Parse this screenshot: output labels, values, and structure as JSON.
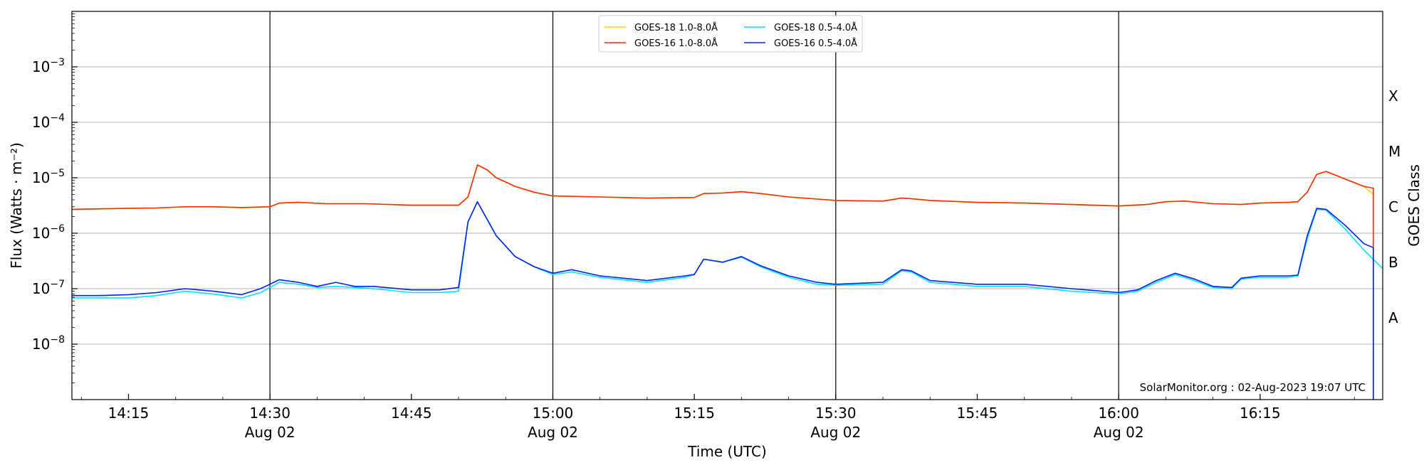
{
  "chart_data": {
    "type": "line",
    "ylabel": "Flux (Watts · m⁻²)",
    "xlabel": "Time (UTC)",
    "right_label": "GOES Class",
    "yscale": "log",
    "ylim": [
      1e-09,
      0.01
    ],
    "xlim": [
      "14:09",
      "16:28"
    ],
    "grid": "horizontal major",
    "legend_position": "top-center",
    "credit": "SolarMonitor.org : 02-Aug-2023 19:07 UTC",
    "y_ticks": [
      {
        "value": 0.001,
        "base": "10",
        "exp": "−3"
      },
      {
        "value": 0.0001,
        "base": "10",
        "exp": "−4"
      },
      {
        "value": 1e-05,
        "base": "10",
        "exp": "−5"
      },
      {
        "value": 1e-06,
        "base": "10",
        "exp": "−6"
      },
      {
        "value": 1e-07,
        "base": "10",
        "exp": "−7"
      },
      {
        "value": 1e-08,
        "base": "10",
        "exp": "−8"
      }
    ],
    "x_ticks": [
      {
        "time": "14:15",
        "label": "14:15",
        "sub": ""
      },
      {
        "time": "14:30",
        "label": "14:30",
        "sub": "Aug 02"
      },
      {
        "time": "14:45",
        "label": "14:45",
        "sub": ""
      },
      {
        "time": "15:00",
        "label": "15:00",
        "sub": "Aug 02"
      },
      {
        "time": "15:15",
        "label": "15:15",
        "sub": ""
      },
      {
        "time": "15:30",
        "label": "15:30",
        "sub": "Aug 02"
      },
      {
        "time": "15:45",
        "label": "15:45",
        "sub": ""
      },
      {
        "time": "16:00",
        "label": "16:00",
        "sub": "Aug 02"
      },
      {
        "time": "16:15",
        "label": "16:15",
        "sub": ""
      }
    ],
    "vertical_lines": [
      "14:30",
      "15:00",
      "15:30",
      "16:00"
    ],
    "goes_classes": [
      {
        "label": "X",
        "value": 0.0003
      },
      {
        "label": "M",
        "value": 3e-05
      },
      {
        "label": "C",
        "value": 3e-06
      },
      {
        "label": "B",
        "value": 3e-07
      },
      {
        "label": "A",
        "value": 3e-08
      }
    ],
    "series": [
      {
        "name": "GOES-18 1.0-8.0Å",
        "color": "#ffd700",
        "points": [
          [
            "14:09",
            2.7e-06
          ],
          [
            "14:12",
            2.75e-06
          ],
          [
            "14:15",
            2.8e-06
          ],
          [
            "14:18",
            2.85e-06
          ],
          [
            "14:21",
            3e-06
          ],
          [
            "14:24",
            3e-06
          ],
          [
            "14:27",
            2.9e-06
          ],
          [
            "14:30",
            3e-06
          ],
          [
            "14:31",
            3.5e-06
          ],
          [
            "14:33",
            3.6e-06
          ],
          [
            "14:36",
            3.4e-06
          ],
          [
            "14:40",
            3.4e-06
          ],
          [
            "14:45",
            3.2e-06
          ],
          [
            "14:50",
            3.2e-06
          ],
          [
            "14:51",
            4.5e-06
          ],
          [
            "14:52",
            1.7e-05
          ],
          [
            "14:53",
            1.4e-05
          ],
          [
            "14:54",
            1e-05
          ],
          [
            "14:56",
            7e-06
          ],
          [
            "14:58",
            5.5e-06
          ],
          [
            "15:00",
            4.7e-06
          ],
          [
            "15:05",
            4.5e-06
          ],
          [
            "15:10",
            4.3e-06
          ],
          [
            "15:15",
            4.4e-06
          ],
          [
            "15:16",
            5.2e-06
          ],
          [
            "15:18",
            5.3e-06
          ],
          [
            "15:20",
            5.6e-06
          ],
          [
            "15:22",
            5.2e-06
          ],
          [
            "15:25",
            4.5e-06
          ],
          [
            "15:30",
            3.9e-06
          ],
          [
            "15:35",
            3.8e-06
          ],
          [
            "15:37",
            4.3e-06
          ],
          [
            "15:38",
            4.2e-06
          ],
          [
            "15:40",
            3.9e-06
          ],
          [
            "15:45",
            3.6e-06
          ],
          [
            "15:50",
            3.5e-06
          ],
          [
            "15:55",
            3.3e-06
          ],
          [
            "16:00",
            3.1e-06
          ],
          [
            "16:03",
            3.3e-06
          ],
          [
            "16:05",
            3.7e-06
          ],
          [
            "16:07",
            3.8e-06
          ],
          [
            "16:10",
            3.4e-06
          ],
          [
            "16:13",
            3.3e-06
          ],
          [
            "16:15",
            3.5e-06
          ],
          [
            "16:18",
            3.6e-06
          ],
          [
            "16:19",
            3.7e-06
          ],
          [
            "16:20",
            5.5e-06
          ],
          [
            "16:21",
            1.15e-05
          ],
          [
            "16:22",
            1.3e-05
          ],
          [
            "16:24",
            9.5e-06
          ],
          [
            "16:26",
            7e-06
          ],
          [
            "16:27",
            5e-06
          ]
        ]
      },
      {
        "name": "GOES-18 0.5-4.0Å",
        "color": "#00e5ff",
        "points": [
          [
            "14:09",
            6.8e-08
          ],
          [
            "14:12",
            6.8e-08
          ],
          [
            "14:15",
            6.8e-08
          ],
          [
            "14:18",
            7.5e-08
          ],
          [
            "14:21",
            9e-08
          ],
          [
            "14:24",
            8e-08
          ],
          [
            "14:27",
            6.8e-08
          ],
          [
            "14:29",
            8.5e-08
          ],
          [
            "14:31",
            1.3e-07
          ],
          [
            "14:33",
            1.2e-07
          ],
          [
            "14:35",
            1.05e-07
          ],
          [
            "14:37",
            1.1e-07
          ],
          [
            "14:39",
            1.05e-07
          ],
          [
            "14:41",
            1e-07
          ],
          [
            "14:45",
            8.5e-08
          ],
          [
            "14:48",
            8.5e-08
          ],
          [
            "14:50",
            9e-08
          ],
          [
            "14:51",
            1.6e-06
          ],
          [
            "14:52",
            3.7e-06
          ],
          [
            "14:54",
            9e-07
          ],
          [
            "14:56",
            3.8e-07
          ],
          [
            "14:58",
            2.5e-07
          ],
          [
            "15:00",
            1.8e-07
          ],
          [
            "15:02",
            2e-07
          ],
          [
            "15:05",
            1.6e-07
          ],
          [
            "15:10",
            1.3e-07
          ],
          [
            "15:14",
            1.6e-07
          ],
          [
            "15:15",
            1.8e-07
          ],
          [
            "15:16",
            3.4e-07
          ],
          [
            "15:18",
            3e-07
          ],
          [
            "15:20",
            3.7e-07
          ],
          [
            "15:22",
            2.5e-07
          ],
          [
            "15:25",
            1.6e-07
          ],
          [
            "15:28",
            1.2e-07
          ],
          [
            "15:30",
            1.15e-07
          ],
          [
            "15:35",
            1.2e-07
          ],
          [
            "15:37",
            2.1e-07
          ],
          [
            "15:38",
            2e-07
          ],
          [
            "15:40",
            1.3e-07
          ],
          [
            "15:45",
            1.1e-07
          ],
          [
            "15:50",
            1.1e-07
          ],
          [
            "15:55",
            9e-08
          ],
          [
            "16:00",
            8e-08
          ],
          [
            "16:02",
            9e-08
          ],
          [
            "16:04",
            1.3e-07
          ],
          [
            "16:06",
            1.8e-07
          ],
          [
            "16:08",
            1.4e-07
          ],
          [
            "16:10",
            1.05e-07
          ],
          [
            "16:12",
            1e-07
          ],
          [
            "16:13",
            1.5e-07
          ],
          [
            "16:15",
            1.6e-07
          ],
          [
            "16:18",
            1.6e-07
          ],
          [
            "16:19",
            1.7e-07
          ],
          [
            "16:20",
            8e-07
          ],
          [
            "16:21",
            2.7e-06
          ],
          [
            "16:22",
            2.6e-06
          ],
          [
            "16:24",
            1.2e-06
          ],
          [
            "16:26",
            5e-07
          ],
          [
            "16:28",
            2.3e-07
          ]
        ]
      },
      {
        "name": "GOES-16 1.0-8.0Å",
        "color": "#ff2a00",
        "points": [
          [
            "14:09",
            2.7e-06
          ],
          [
            "14:12",
            2.75e-06
          ],
          [
            "14:15",
            2.8e-06
          ],
          [
            "14:18",
            2.85e-06
          ],
          [
            "14:21",
            3e-06
          ],
          [
            "14:24",
            3e-06
          ],
          [
            "14:27",
            2.9e-06
          ],
          [
            "14:30",
            3e-06
          ],
          [
            "14:31",
            3.5e-06
          ],
          [
            "14:33",
            3.6e-06
          ],
          [
            "14:36",
            3.4e-06
          ],
          [
            "14:40",
            3.4e-06
          ],
          [
            "14:45",
            3.2e-06
          ],
          [
            "14:50",
            3.2e-06
          ],
          [
            "14:51",
            4.5e-06
          ],
          [
            "14:52",
            1.7e-05
          ],
          [
            "14:53",
            1.4e-05
          ],
          [
            "14:54",
            1e-05
          ],
          [
            "14:56",
            7e-06
          ],
          [
            "14:58",
            5.5e-06
          ],
          [
            "15:00",
            4.7e-06
          ],
          [
            "15:05",
            4.5e-06
          ],
          [
            "15:10",
            4.3e-06
          ],
          [
            "15:15",
            4.4e-06
          ],
          [
            "15:16",
            5.2e-06
          ],
          [
            "15:18",
            5.3e-06
          ],
          [
            "15:20",
            5.6e-06
          ],
          [
            "15:22",
            5.2e-06
          ],
          [
            "15:25",
            4.5e-06
          ],
          [
            "15:30",
            3.9e-06
          ],
          [
            "15:35",
            3.8e-06
          ],
          [
            "15:37",
            4.3e-06
          ],
          [
            "15:38",
            4.2e-06
          ],
          [
            "15:40",
            3.9e-06
          ],
          [
            "15:45",
            3.6e-06
          ],
          [
            "15:50",
            3.5e-06
          ],
          [
            "15:55",
            3.3e-06
          ],
          [
            "16:00",
            3.1e-06
          ],
          [
            "16:03",
            3.3e-06
          ],
          [
            "16:05",
            3.7e-06
          ],
          [
            "16:07",
            3.8e-06
          ],
          [
            "16:10",
            3.4e-06
          ],
          [
            "16:13",
            3.3e-06
          ],
          [
            "16:15",
            3.5e-06
          ],
          [
            "16:18",
            3.6e-06
          ],
          [
            "16:19",
            3.7e-06
          ],
          [
            "16:20",
            5.5e-06
          ],
          [
            "16:21",
            1.15e-05
          ],
          [
            "16:22",
            1.3e-05
          ],
          [
            "16:24",
            9.5e-06
          ],
          [
            "16:26",
            7e-06
          ],
          [
            "16:27",
            6.5e-06
          ],
          [
            "16:27",
            1e-09
          ]
        ]
      },
      {
        "name": "GOES-16 0.5-4.0Å",
        "color": "#0022ee",
        "points": [
          [
            "14:09",
            7.5e-08
          ],
          [
            "14:12",
            7.5e-08
          ],
          [
            "14:15",
            7.8e-08
          ],
          [
            "14:18",
            8.5e-08
          ],
          [
            "14:21",
            1e-07
          ],
          [
            "14:24",
            9e-08
          ],
          [
            "14:27",
            7.8e-08
          ],
          [
            "14:29",
            1e-07
          ],
          [
            "14:31",
            1.45e-07
          ],
          [
            "14:33",
            1.3e-07
          ],
          [
            "14:35",
            1.1e-07
          ],
          [
            "14:37",
            1.3e-07
          ],
          [
            "14:39",
            1.1e-07
          ],
          [
            "14:41",
            1.1e-07
          ],
          [
            "14:45",
            9.5e-08
          ],
          [
            "14:48",
            9.5e-08
          ],
          [
            "14:50",
            1.05e-07
          ],
          [
            "14:51",
            1.6e-06
          ],
          [
            "14:52",
            3.7e-06
          ],
          [
            "14:54",
            9e-07
          ],
          [
            "14:56",
            3.8e-07
          ],
          [
            "14:58",
            2.5e-07
          ],
          [
            "15:00",
            1.9e-07
          ],
          [
            "15:02",
            2.2e-07
          ],
          [
            "15:05",
            1.7e-07
          ],
          [
            "15:10",
            1.4e-07
          ],
          [
            "15:14",
            1.7e-07
          ],
          [
            "15:15",
            1.8e-07
          ],
          [
            "15:16",
            3.4e-07
          ],
          [
            "15:18",
            3e-07
          ],
          [
            "15:20",
            3.8e-07
          ],
          [
            "15:22",
            2.6e-07
          ],
          [
            "15:25",
            1.7e-07
          ],
          [
            "15:28",
            1.3e-07
          ],
          [
            "15:30",
            1.2e-07
          ],
          [
            "15:35",
            1.3e-07
          ],
          [
            "15:37",
            2.2e-07
          ],
          [
            "15:38",
            2.1e-07
          ],
          [
            "15:40",
            1.4e-07
          ],
          [
            "15:45",
            1.2e-07
          ],
          [
            "15:50",
            1.2e-07
          ],
          [
            "15:55",
            1e-07
          ],
          [
            "16:00",
            8.5e-08
          ],
          [
            "16:02",
            9.5e-08
          ],
          [
            "16:04",
            1.4e-07
          ],
          [
            "16:06",
            1.9e-07
          ],
          [
            "16:08",
            1.5e-07
          ],
          [
            "16:10",
            1.1e-07
          ],
          [
            "16:12",
            1.05e-07
          ],
          [
            "16:13",
            1.55e-07
          ],
          [
            "16:15",
            1.7e-07
          ],
          [
            "16:18",
            1.7e-07
          ],
          [
            "16:19",
            1.75e-07
          ],
          [
            "16:20",
            9e-07
          ],
          [
            "16:21",
            2.8e-06
          ],
          [
            "16:22",
            2.7e-06
          ],
          [
            "16:24",
            1.4e-06
          ],
          [
            "16:26",
            6.5e-07
          ],
          [
            "16:27",
            5.5e-07
          ],
          [
            "16:27",
            1e-09
          ]
        ]
      }
    ]
  }
}
